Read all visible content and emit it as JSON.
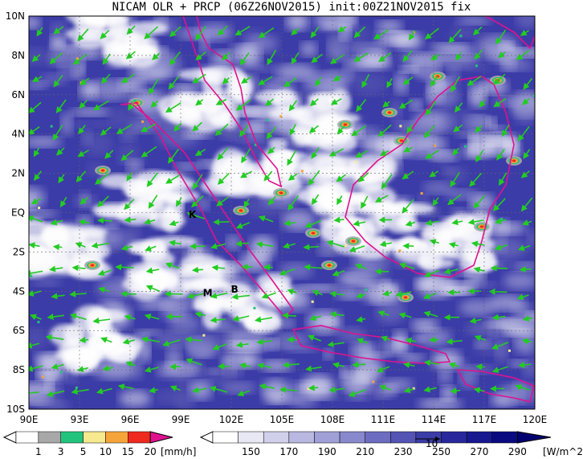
{
  "title": "NICAM OLR + PRCP (06Z26NOV2015) init:00Z21NOV2015 fix",
  "map": {
    "region": "Maritime Continent / Sumatra",
    "lon_range": [
      90,
      120
    ],
    "lat_range": [
      -10,
      10
    ],
    "lon_ticks": [
      "90E",
      "93E",
      "96E",
      "99E",
      "102E",
      "105E",
      "108E",
      "111E",
      "114E",
      "117E",
      "120E"
    ],
    "lat_ticks": [
      "10N",
      "8N",
      "6N",
      "4N",
      "2N",
      "EQ",
      "2S",
      "4S",
      "6S",
      "8S",
      "10S"
    ],
    "city_labels": [
      {
        "text": "K",
        "lon": 99.7,
        "lat": -0.1
      },
      {
        "text": "M",
        "lon": 100.6,
        "lat": -4.1
      },
      {
        "text": "B",
        "lon": 102.2,
        "lat": -3.9
      }
    ],
    "colors": {
      "coastline": "#e0128f",
      "wind_vectors": "#22cc22",
      "grid": "#666666"
    }
  },
  "precip_colorbar": {
    "labels": [
      "1",
      "3",
      "5",
      "10",
      "15",
      "20"
    ],
    "unit": "[mm/h]",
    "colors": [
      "#ffffff",
      "#a8a8a8",
      "#22c47d",
      "#f6e98e",
      "#f6a43a",
      "#ef2a1f",
      "#e0128f"
    ]
  },
  "olr_colorbar": {
    "labels": [
      "150",
      "170",
      "190",
      "210",
      "230",
      "250",
      "270",
      "290"
    ],
    "unit": "[W/m^2]",
    "vector_label": "10",
    "colors": [
      "#ffffff",
      "#e8e8f4",
      "#d0d0ea",
      "#b8b8e0",
      "#a0a0d6",
      "#8888cc",
      "#6c6cc0",
      "#5454b4",
      "#3c3ca8",
      "#28289c",
      "#181890",
      "#0a0a80",
      "#000070"
    ]
  }
}
